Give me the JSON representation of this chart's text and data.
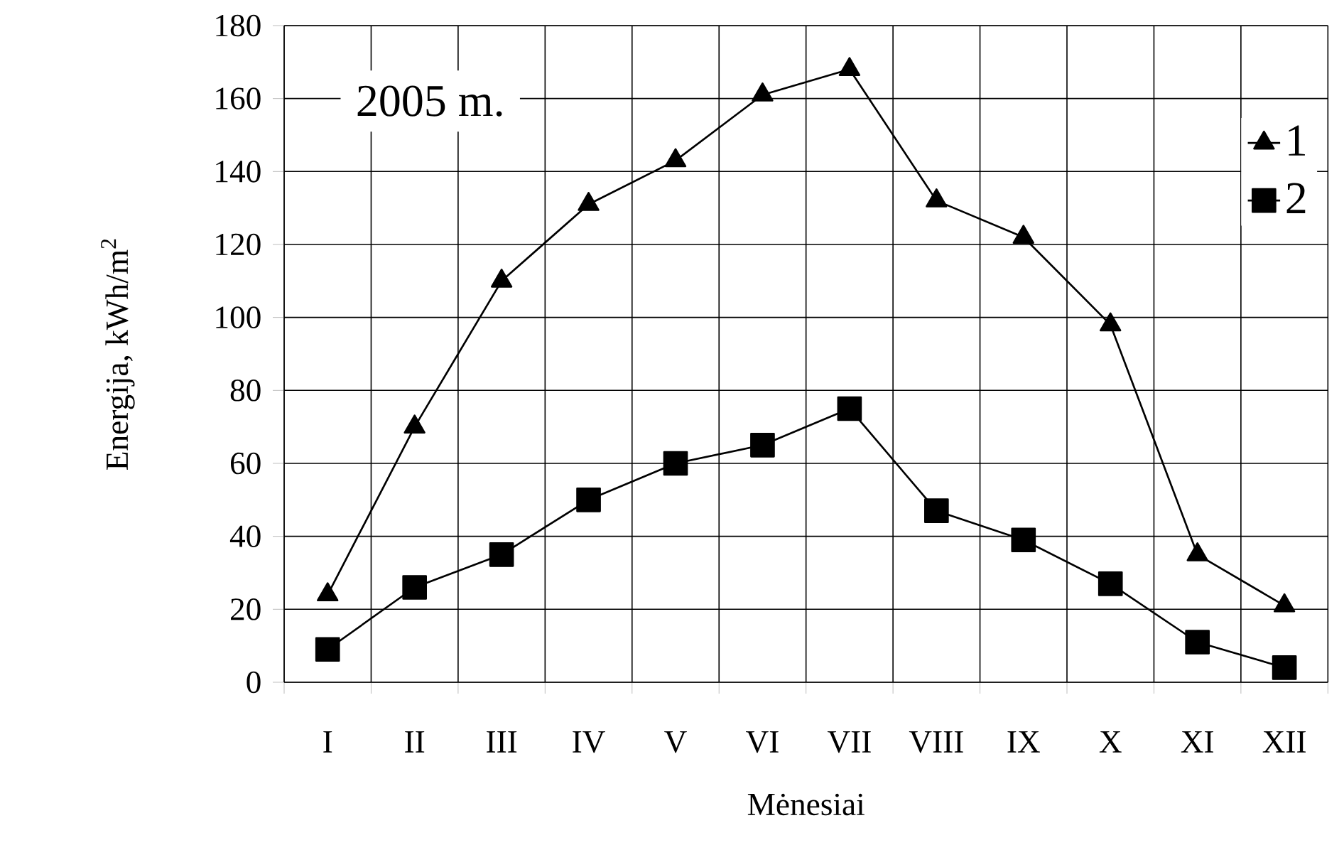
{
  "chart_data": {
    "type": "line",
    "xlabel": "Mėnesiai",
    "ylabel": "Energija, kWh/m$^{2}$",
    "annotations": [
      "2005 m."
    ],
    "categories": [
      "I",
      "II",
      "III",
      "IV",
      "V",
      "VI",
      "VII",
      "VIII",
      "IX",
      "X",
      "XI",
      "XII"
    ],
    "series": [
      {
        "name": "1",
        "color": "#000000",
        "marker": "triangle",
        "values": [
          24,
          70,
          110,
          131,
          143,
          161,
          168,
          132,
          122,
          98,
          35,
          21
        ]
      },
      {
        "name": "2",
        "color": "#000000",
        "marker": "square",
        "values": [
          9,
          26,
          35,
          50,
          60,
          65,
          75,
          47,
          39,
          27,
          11,
          4
        ]
      }
    ],
    "ylim": [
      0,
      180
    ],
    "yticks": [
      0,
      20,
      40,
      60,
      80,
      100,
      120,
      140,
      160,
      180
    ],
    "grid": true,
    "legend": "top right",
    "line_style": "solid"
  }
}
